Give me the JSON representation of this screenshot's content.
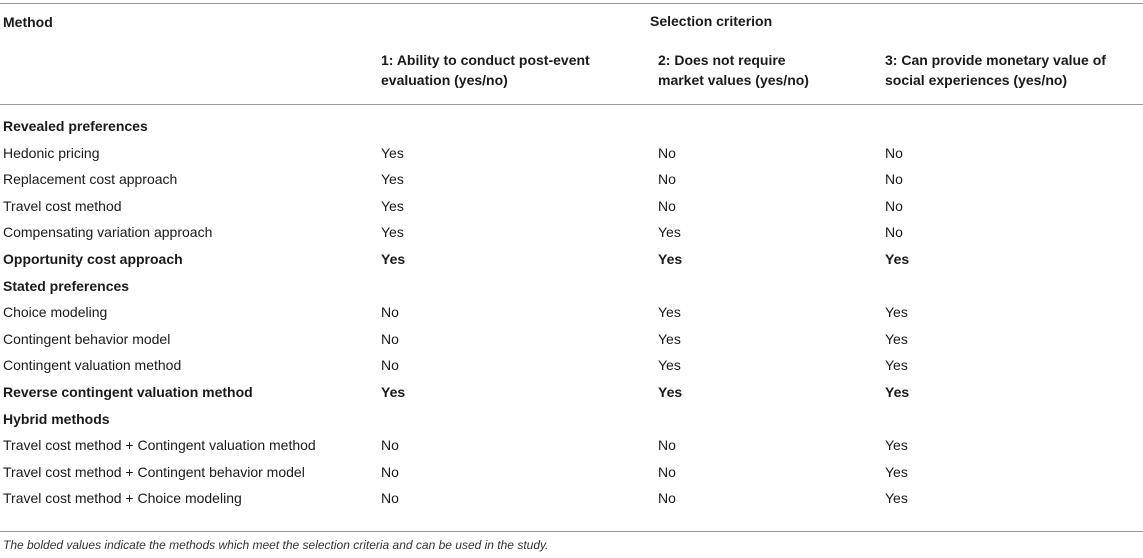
{
  "header": {
    "method_label": "Method",
    "criterion_title": "Selection criterion",
    "criteria": [
      {
        "line1": "1: Ability to conduct post-event",
        "line2": "evaluation (yes/no)"
      },
      {
        "line1": "2: Does not require",
        "line2": "market values (yes/no)"
      },
      {
        "line1": "3: Can provide monetary value of",
        "line2": "social experiences (yes/no)"
      }
    ]
  },
  "rows": [
    {
      "type": "section",
      "label": "Revealed preferences"
    },
    {
      "type": "row",
      "label": "Hedonic pricing",
      "v": [
        "Yes",
        "No",
        "No"
      ],
      "bold": false
    },
    {
      "type": "row",
      "label": "Replacement cost approach",
      "v": [
        "Yes",
        "No",
        "No"
      ],
      "bold": false
    },
    {
      "type": "row",
      "label": "Travel cost method",
      "v": [
        "Yes",
        "No",
        "No"
      ],
      "bold": false
    },
    {
      "type": "row",
      "label": "Compensating variation approach",
      "v": [
        "Yes",
        "Yes",
        "No"
      ],
      "bold": false
    },
    {
      "type": "row",
      "label": "Opportunity cost approach",
      "v": [
        "Yes",
        "Yes",
        "Yes"
      ],
      "bold": true
    },
    {
      "type": "section",
      "label": "Stated preferences"
    },
    {
      "type": "row",
      "label": "Choice modeling",
      "v": [
        "No",
        "Yes",
        "Yes"
      ],
      "bold": false
    },
    {
      "type": "row",
      "label": "Contingent behavior model",
      "v": [
        "No",
        "Yes",
        "Yes"
      ],
      "bold": false
    },
    {
      "type": "row",
      "label": "Contingent valuation method",
      "v": [
        "No",
        "Yes",
        "Yes"
      ],
      "bold": false
    },
    {
      "type": "row",
      "label": "Reverse contingent valuation method",
      "v": [
        "Yes",
        "Yes",
        "Yes"
      ],
      "bold": true
    },
    {
      "type": "section",
      "label": "Hybrid methods"
    },
    {
      "type": "row",
      "label": "Travel cost method + Contingent valuation method",
      "v": [
        "No",
        "No",
        "Yes"
      ],
      "bold": false
    },
    {
      "type": "row",
      "label": "Travel cost method + Contingent behavior model",
      "v": [
        "No",
        "No",
        "Yes"
      ],
      "bold": false
    },
    {
      "type": "row",
      "label": "Travel cost method + Choice modeling",
      "v": [
        "No",
        "No",
        "Yes"
      ],
      "bold": false
    }
  ],
  "footnote": "The bolded values indicate the methods which meet the selection criteria and can be used in the study."
}
